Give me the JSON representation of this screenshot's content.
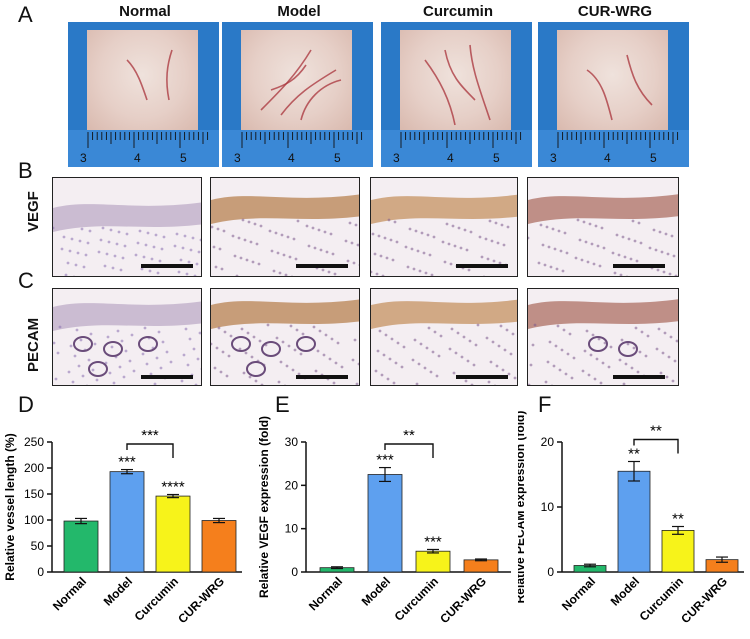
{
  "panel_letters": [
    "A",
    "B",
    "C",
    "D",
    "E",
    "F"
  ],
  "groups": [
    "Normal",
    "Model",
    "Curcumin",
    "CUR-WRG"
  ],
  "row_labels": {
    "vegf": "VEGF",
    "pecam": "PECAM"
  },
  "ruler_numbers": [
    "3",
    "4",
    "5"
  ],
  "colors": {
    "Normal": "#23b86b",
    "Model": "#5ea0ef",
    "Curcumin": "#f7f31a",
    "CUR-WRG": "#f57f1c",
    "photo_bg": "#2a79c7"
  },
  "chart_data": [
    {
      "type": "bar",
      "categories": [
        "Normal",
        "Model",
        "Curcumin",
        "CUR-WRG"
      ],
      "values": [
        98,
        193,
        146,
        99
      ],
      "errors": [
        5,
        4,
        3,
        4
      ],
      "ylabel": "Relative vessel length (%)",
      "ylim": [
        0,
        250
      ],
      "yticks": [
        0,
        50,
        100,
        150,
        200,
        250
      ],
      "bar_labels": [
        "",
        "***",
        "****",
        ""
      ],
      "bracket": {
        "from": "Model",
        "to": "Curcumin",
        "label": "***"
      }
    },
    {
      "type": "bar",
      "categories": [
        "Normal",
        "Model",
        "Curcumin",
        "CUR-WRG"
      ],
      "values": [
        1,
        22.5,
        4.8,
        2.8
      ],
      "errors": [
        0.2,
        1.6,
        0.4,
        0.2
      ],
      "ylabel": "Relative VEGF expression (fold)",
      "ylim": [
        0,
        30
      ],
      "yticks": [
        0,
        10,
        20,
        30
      ],
      "bar_labels": [
        "",
        "***",
        "***",
        ""
      ],
      "bracket": {
        "from": "Model",
        "to": "Curcumin",
        "label": "**"
      }
    },
    {
      "type": "bar",
      "categories": [
        "Normal",
        "Model",
        "Curcumin",
        "CUR-WRG"
      ],
      "values": [
        1,
        15.5,
        6.4,
        1.9
      ],
      "errors": [
        0.2,
        1.5,
        0.6,
        0.4
      ],
      "ylabel": "Relative PECAM expression (fold)",
      "ylim": [
        0,
        20
      ],
      "yticks": [
        0,
        10,
        20
      ],
      "bar_labels": [
        "",
        "**",
        "**",
        ""
      ],
      "bracket": {
        "from": "Model",
        "to": "Curcumin",
        "label": "**"
      }
    }
  ]
}
